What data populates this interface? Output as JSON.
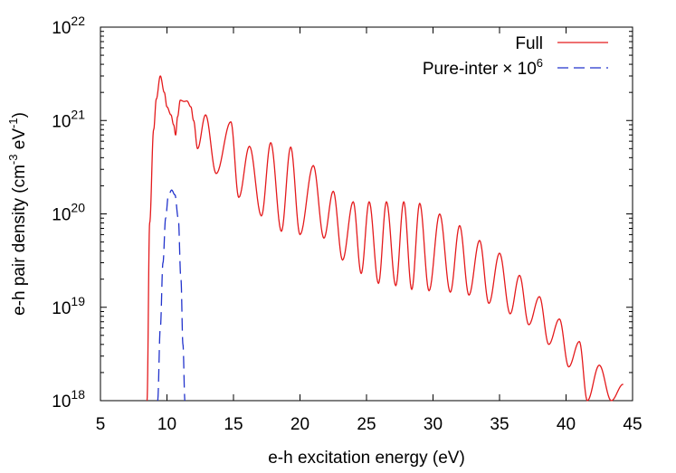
{
  "chart_data": {
    "type": "line",
    "xlabel": "e-h excitation energy (eV)",
    "ylabel": {
      "prefix": "e-h pair density (cm",
      "exp1": "-3",
      "middle": " eV",
      "exp2": "-1",
      "suffix": ")"
    },
    "x_ticks": [
      "5",
      "10",
      "15",
      "20",
      "25",
      "30",
      "35",
      "40",
      "45"
    ],
    "y_ticks": [
      {
        "base": "10",
        "exp": "18"
      },
      {
        "base": "10",
        "exp": "19"
      },
      {
        "base": "10",
        "exp": "20"
      },
      {
        "base": "10",
        "exp": "21"
      },
      {
        "base": "10",
        "exp": "22"
      }
    ],
    "xlim": [
      5,
      45
    ],
    "ylim": [
      1e+18,
      1e+22
    ],
    "yscale": "log",
    "legend_position": "top-right",
    "series": [
      {
        "name": "Full",
        "color": "#e41a1c",
        "dash": "solid",
        "base_points": [
          [
            8.5,
            1e+18
          ],
          [
            8.7,
            8e+19
          ],
          [
            9.0,
            8e+20
          ],
          [
            9.2,
            1.7e+21
          ],
          [
            9.5,
            3e+21
          ],
          [
            9.8,
            2e+21
          ],
          [
            10.0,
            1.4e+21
          ],
          [
            10.3,
            1.15e+21
          ],
          [
            10.5,
            9e+20
          ],
          [
            10.65,
            7e+20
          ],
          [
            10.8,
            1.1e+21
          ],
          [
            11.0,
            1.65e+21
          ],
          [
            11.3,
            1.6e+21
          ],
          [
            11.5,
            1.62e+21
          ],
          [
            11.8,
            1.4e+21
          ],
          [
            12.0,
            1e+21
          ],
          [
            12.3,
            5e+20
          ]
        ],
        "peaks": [
          [
            12.9,
            1.15e+21
          ],
          [
            14.8,
            9.7e+20
          ],
          [
            16.2,
            5.3e+20
          ],
          [
            17.8,
            5.8e+20
          ],
          [
            19.3,
            5.2e+20
          ],
          [
            21.0,
            3.3e+20
          ],
          [
            22.5,
            1.75e+20
          ],
          [
            24.0,
            1.35e+20
          ],
          [
            25.2,
            1.35e+20
          ],
          [
            26.5,
            1.35e+20
          ],
          [
            27.8,
            1.35e+20
          ],
          [
            29.0,
            1.3e+20
          ],
          [
            30.5,
            1e+20
          ],
          [
            32.0,
            7.5e+19
          ],
          [
            33.5,
            5.2e+19
          ],
          [
            35.0,
            3.8e+19
          ],
          [
            36.5,
            2.2e+19
          ],
          [
            38.0,
            1.3e+19
          ],
          [
            39.5,
            7.5e+18
          ],
          [
            41.0,
            4.3e+18
          ],
          [
            42.5,
            2.4e+18
          ],
          [
            44.3,
            1.5e+18
          ]
        ],
        "troughs": [
          [
            13.7,
            2.7e+20
          ],
          [
            15.4,
            1.5e+20
          ],
          [
            17.1,
            9.5e+19
          ],
          [
            18.6,
            6.5e+19
          ],
          [
            20.0,
            6e+19
          ],
          [
            21.8,
            5.5e+19
          ],
          [
            23.2,
            3.2e+19
          ],
          [
            24.6,
            2.3e+19
          ],
          [
            25.9,
            1.8e+19
          ],
          [
            27.2,
            1.7e+19
          ],
          [
            28.4,
            1.55e+19
          ],
          [
            29.7,
            1.5e+19
          ],
          [
            31.3,
            1.45e+19
          ],
          [
            32.7,
            1.35e+19
          ],
          [
            34.2,
            1.1e+19
          ],
          [
            35.8,
            8.5e+18
          ],
          [
            37.2,
            6.5e+18
          ],
          [
            38.7,
            4e+18
          ],
          [
            40.2,
            2.3e+18
          ],
          [
            41.6,
            1e+18
          ],
          [
            43.4,
            1e+18
          ]
        ]
      },
      {
        "name": "Pure-inter",
        "name_suffix": "× 10",
        "name_exp": "6",
        "color": "#2233cc",
        "dash": "dashed",
        "base_points": [
          [
            9.3,
            1e+18
          ],
          [
            9.5,
            6e+18
          ],
          [
            9.7,
            3e+19
          ],
          [
            9.9,
            9e+19
          ],
          [
            10.1,
            1.55e+20
          ],
          [
            10.35,
            1.8e+20
          ],
          [
            10.6,
            1.6e+20
          ],
          [
            10.85,
            9e+19
          ],
          [
            11.05,
            2e+19
          ],
          [
            11.2,
            4e+18
          ],
          [
            11.35,
            1e+18
          ]
        ]
      }
    ]
  }
}
